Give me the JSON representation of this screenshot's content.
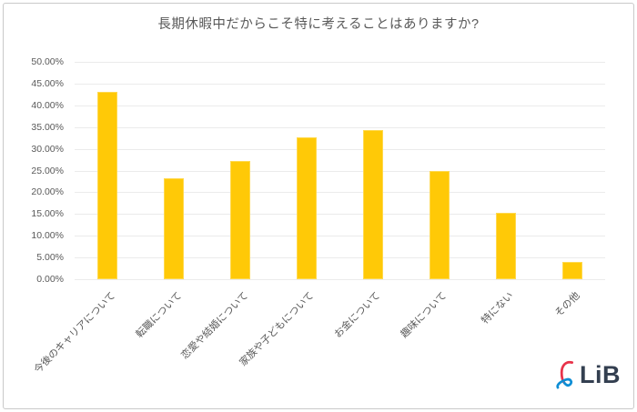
{
  "page": {
    "background": "#ffffff",
    "border_color": "#c9c9c9"
  },
  "chart_data": {
    "type": "bar",
    "title": "長期休暇中だからこそ特に考えることはありますか?",
    "categories": [
      "今後のキャリアについて",
      "転職について",
      "恋愛や結婚について",
      "家族や子どもについて",
      "お金について",
      "趣味について",
      "特にない",
      "その他"
    ],
    "values": [
      43.2,
      23.2,
      27.3,
      32.7,
      34.3,
      24.9,
      15.3,
      3.9
    ],
    "yticks": [
      "50.00%",
      "45.00%",
      "40.00%",
      "35.00%",
      "30.00%",
      "25.00%",
      "20.00%",
      "15.00%",
      "10.00%",
      "5.00%",
      "0.00%"
    ],
    "ylim": [
      0,
      50
    ],
    "xlabel": "",
    "ylabel": "",
    "grid": true,
    "legend_position": "none",
    "bar_color": "#FFC907",
    "bar_edge_color": "#FFD94F",
    "gridline_color": "#ebebeb",
    "text_color": "#595959"
  },
  "logo": {
    "text": "LiB",
    "mark": "script-ell-ribbon-icon",
    "red": "#E8334A",
    "blue": "#0E8ED5",
    "text_color": "#333F50"
  }
}
